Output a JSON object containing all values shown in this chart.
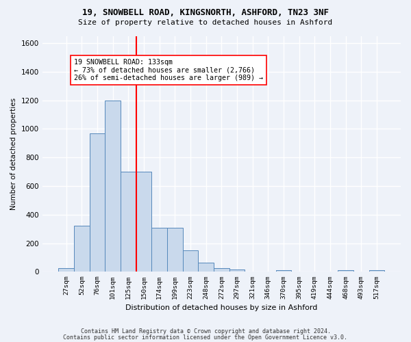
{
  "title_line1": "19, SNOWBELL ROAD, KINGSNORTH, ASHFORD, TN23 3NF",
  "title_line2": "Size of property relative to detached houses in Ashford",
  "xlabel": "Distribution of detached houses by size in Ashford",
  "ylabel": "Number of detached properties",
  "bar_values": [
    25,
    320,
    970,
    1200,
    700,
    700,
    310,
    310,
    150,
    65,
    25,
    15,
    0,
    0,
    10,
    0,
    0,
    0,
    10,
    0,
    10
  ],
  "bar_labels": [
    "27sqm",
    "52sqm",
    "76sqm",
    "101sqm",
    "125sqm",
    "150sqm",
    "174sqm",
    "199sqm",
    "223sqm",
    "248sqm",
    "272sqm",
    "297sqm",
    "321sqm",
    "346sqm",
    "370sqm",
    "395sqm",
    "419sqm",
    "444sqm",
    "468sqm",
    "493sqm",
    "517sqm"
  ],
  "bar_color": "#c9d9ec",
  "bar_edge_color": "#5588bb",
  "reference_line_color": "red",
  "annotation_text": "19 SNOWBELL ROAD: 133sqm\n← 73% of detached houses are smaller (2,766)\n26% of semi-detached houses are larger (989) →",
  "annotation_box_color": "white",
  "annotation_box_edge_color": "red",
  "ylim": [
    0,
    1650
  ],
  "yticks": [
    0,
    200,
    400,
    600,
    800,
    1000,
    1200,
    1400,
    1600
  ],
  "footer_line1": "Contains HM Land Registry data © Crown copyright and database right 2024.",
  "footer_line2": "Contains public sector information licensed under the Open Government Licence v3.0.",
  "background_color": "#eef2f9",
  "grid_color": "#ffffff"
}
